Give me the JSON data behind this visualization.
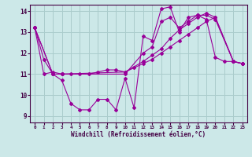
{
  "bg_color": "#cce8e8",
  "grid_color": "#aacccc",
  "line_color": "#990099",
  "spine_color": "#440044",
  "xlabel": "Windchill (Refroidissement éolien,°C)",
  "xlim": [
    -0.5,
    23.5
  ],
  "ylim": [
    8.7,
    14.3
  ],
  "yticks": [
    9,
    10,
    11,
    12,
    13,
    14
  ],
  "xticks": [
    0,
    1,
    2,
    3,
    4,
    5,
    6,
    7,
    8,
    9,
    10,
    11,
    12,
    13,
    14,
    15,
    16,
    17,
    18,
    19,
    20,
    21,
    22,
    23
  ],
  "curve1_x": [
    0,
    1,
    2,
    3,
    4,
    5,
    6,
    7,
    8,
    9,
    10,
    11,
    12,
    13,
    14,
    15,
    16,
    17,
    18,
    19,
    20,
    21,
    22,
    23
  ],
  "curve1_y": [
    13.2,
    11.7,
    11.0,
    10.7,
    9.6,
    9.3,
    9.3,
    9.8,
    9.8,
    9.3,
    10.8,
    9.4,
    12.8,
    12.6,
    14.1,
    14.2,
    13.0,
    13.7,
    13.8,
    13.6,
    11.8,
    11.6,
    11.6,
    11.5
  ],
  "curve2_x": [
    0,
    1,
    2,
    3,
    4,
    5,
    6,
    7,
    8,
    9,
    10,
    11,
    12,
    13,
    14,
    15,
    16,
    17,
    18,
    19,
    20,
    22,
    23
  ],
  "curve2_y": [
    13.2,
    11.0,
    11.1,
    11.0,
    11.0,
    11.0,
    11.0,
    11.1,
    11.2,
    11.2,
    11.1,
    11.3,
    11.5,
    11.7,
    12.0,
    12.3,
    12.6,
    12.9,
    13.2,
    13.5,
    13.7,
    11.6,
    11.5
  ],
  "curve3_x": [
    0,
    2,
    3,
    10,
    12,
    13,
    14,
    15,
    16,
    17,
    18,
    19,
    20,
    22,
    23
  ],
  "curve3_y": [
    13.2,
    11.0,
    11.0,
    11.0,
    12.0,
    12.3,
    13.5,
    13.7,
    13.2,
    13.5,
    13.8,
    13.8,
    13.6,
    11.6,
    11.5
  ],
  "curve4_x": [
    0,
    2,
    3,
    10,
    12,
    13,
    14,
    15,
    16,
    17,
    18,
    19,
    20,
    22,
    23
  ],
  "curve4_y": [
    13.2,
    11.0,
    11.0,
    11.1,
    11.6,
    11.9,
    12.2,
    12.7,
    13.1,
    13.4,
    13.7,
    13.9,
    13.7,
    11.6,
    11.5
  ]
}
